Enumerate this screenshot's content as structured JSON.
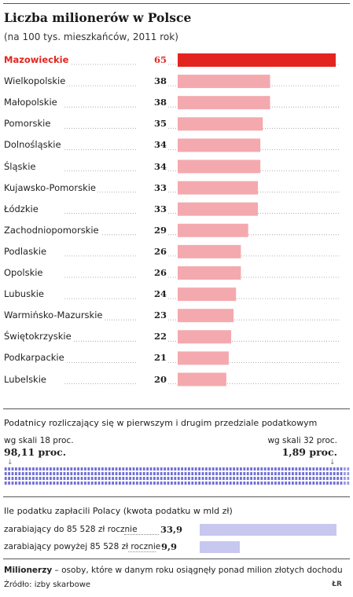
{
  "title": "Liczba milionerów w Polsce",
  "subtitle": "(na 100 tys. mieszkańców, 2011 rok)",
  "chart_data": [
    {
      "type": "bar",
      "orientation": "horizontal",
      "title": "Liczba milionerów w Polsce",
      "subtitle": "(na 100 tys. mieszkańców, 2011 rok)",
      "categories": [
        "Mazowieckie",
        "Wielkopolskie",
        "Małopolskie",
        "Pomorskie",
        "Dolnośląskie",
        "Śląskie",
        "Kujawsko-Pomorskie",
        "Łódzkie",
        "Zachodniopomorskie",
        "Podlaskie",
        "Opolskie",
        "Lubuskie",
        "Warmińsko-Mazurskie",
        "Świętokrzyskie",
        "Podkarpackie",
        "Lubelskie"
      ],
      "values": [
        65,
        38,
        38,
        35,
        34,
        34,
        33,
        33,
        29,
        26,
        26,
        24,
        23,
        22,
        21,
        20
      ],
      "highlight": "Mazowieckie",
      "colors": {
        "highlight": "#e3251f",
        "normal": "#f4a9ae"
      },
      "xlim": [
        0,
        65
      ]
    },
    {
      "type": "dot-matrix",
      "title": "Podatnicy rozliczający się w pierwszym i drugim przedziale podatkowym",
      "series": [
        {
          "name": "wg skali 18 proc.",
          "label": "98,11 proc.",
          "value": 98.11,
          "color": "#6f6fd8"
        },
        {
          "name": "wg skali 32 proc.",
          "label": "1,89 proc.",
          "value": 1.89,
          "color": "#9a9ae8"
        }
      ]
    },
    {
      "type": "bar",
      "orientation": "horizontal",
      "title": "Ile podatku zapłacili Polacy (kwota podatku w mld zł)",
      "categories": [
        "zarabiający do 85 528 zł rocznie",
        "zarabiający powyżej 85 528 zł rocznie"
      ],
      "values": [
        33.9,
        9.9
      ],
      "labels": [
        "33,9",
        "9,9"
      ],
      "color": "#c7c7f0",
      "xlim": [
        0,
        33.9
      ]
    }
  ],
  "tax_brackets": {
    "title": "Podatnicy rozliczający się w pierwszym i drugim przedziale podatkowym",
    "left_caption": "wg skali 18 proc.",
    "left_value": "98,11 proc.",
    "right_caption": "wg skali 32 proc.",
    "right_value": "1,89 proc."
  },
  "tax_paid": {
    "title": "Ile podatku zapłacili Polacy (kwota podatku w mld zł)"
  },
  "footnote": {
    "term": "Milionerzy",
    "text": " – osoby, które w danym roku osiągnęły ponad milion złotych dochodu"
  },
  "source": "Źródło: izby skarbowe",
  "logo": "ŁR"
}
